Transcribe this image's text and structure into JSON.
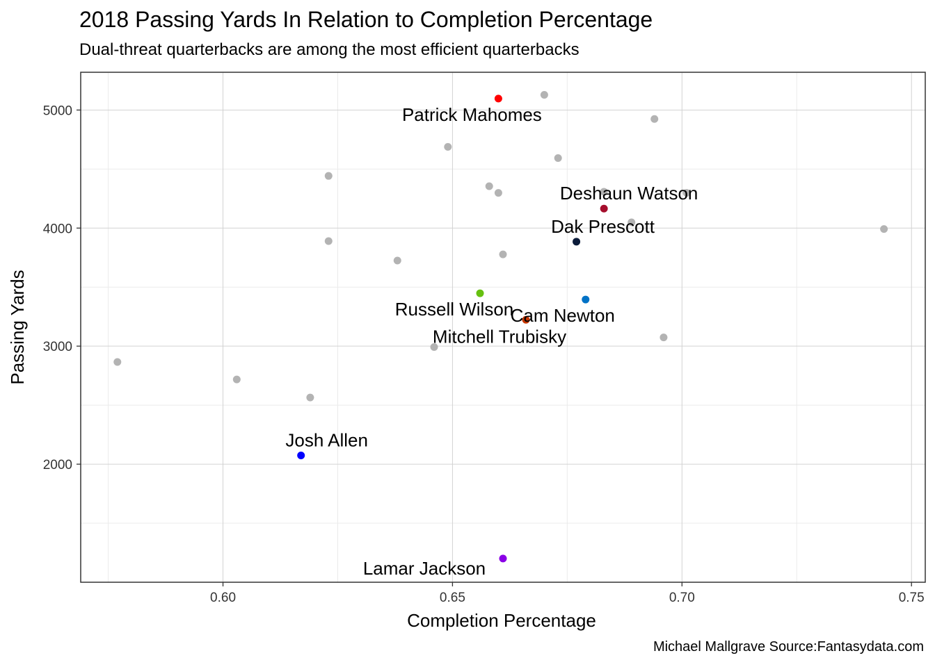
{
  "chart_data": {
    "type": "scatter",
    "title": "2018 Passing Yards In Relation to Completion Percentage",
    "subtitle": "Dual-threat quarterbacks are among the most efficient quarterbacks",
    "caption": "Michael Mallgrave Source:Fantasydata.com",
    "xlabel": "Completion Percentage",
    "ylabel": "Passing Yards",
    "xlim": [
      0.569,
      0.753
    ],
    "ylim": [
      1000,
      5320
    ],
    "xticks": [
      0.6,
      0.65,
      0.7,
      0.75
    ],
    "xtick_labels": [
      "0.60",
      "0.65",
      "0.70",
      "0.75"
    ],
    "yticks": [
      2000,
      3000,
      4000,
      5000
    ],
    "ytick_labels": [
      "2000",
      "3000",
      "4000",
      "5000"
    ],
    "grid": true,
    "highlighted": [
      {
        "name": "Patrick Mahomes",
        "x": 0.66,
        "y": 5097,
        "color": "#ff0000"
      },
      {
        "name": "Deshaun Watson",
        "x": 0.683,
        "y": 4165,
        "color": "#a50e2d"
      },
      {
        "name": "Dak Prescott",
        "x": 0.677,
        "y": 3885,
        "color": "#0c1c3a"
      },
      {
        "name": "Cam Newton",
        "x": 0.679,
        "y": 3395,
        "color": "#0072c6"
      },
      {
        "name": "Russell Wilson",
        "x": 0.656,
        "y": 3448,
        "color": "#66c010"
      },
      {
        "name": "Mitchell Trubisky",
        "x": 0.666,
        "y": 3223,
        "color": "#c83803"
      },
      {
        "name": "Josh Allen",
        "x": 0.617,
        "y": 2074,
        "color": "#0000ff"
      },
      {
        "name": "Lamar Jackson",
        "x": 0.661,
        "y": 1201,
        "color": "#8a00e6"
      }
    ],
    "others": {
      "color": "#b3b3b3",
      "points": [
        {
          "x": 0.67,
          "y": 5129
        },
        {
          "x": 0.694,
          "y": 4924
        },
        {
          "x": 0.649,
          "y": 4688
        },
        {
          "x": 0.673,
          "y": 4593
        },
        {
          "x": 0.623,
          "y": 4442
        },
        {
          "x": 0.658,
          "y": 4355
        },
        {
          "x": 0.66,
          "y": 4298
        },
        {
          "x": 0.683,
          "y": 4308
        },
        {
          "x": 0.701,
          "y": 4298
        },
        {
          "x": 0.689,
          "y": 4049
        },
        {
          "x": 0.744,
          "y": 3992
        },
        {
          "x": 0.623,
          "y": 3890
        },
        {
          "x": 0.661,
          "y": 3777
        },
        {
          "x": 0.638,
          "y": 3725
        },
        {
          "x": 0.696,
          "y": 3074
        },
        {
          "x": 0.646,
          "y": 2992
        },
        {
          "x": 0.577,
          "y": 2866
        },
        {
          "x": 0.603,
          "y": 2718
        },
        {
          "x": 0.619,
          "y": 2565
        }
      ]
    }
  }
}
